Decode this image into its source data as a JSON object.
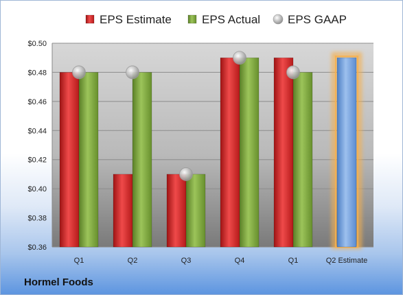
{
  "footer": {
    "company": "Hormel Foods"
  },
  "chart_data": {
    "type": "bar",
    "categories": [
      "Q1",
      "Q2",
      "Q3",
      "Q4",
      "Q1",
      "Q2 Estimate"
    ],
    "series": [
      {
        "name": "EPS Estimate",
        "kind": "bar",
        "color": "#d42a2a",
        "values": [
          0.48,
          0.41,
          0.41,
          0.49,
          0.49,
          null
        ]
      },
      {
        "name": "EPS Actual",
        "kind": "bar",
        "color": "#7ea53b",
        "values": [
          0.48,
          0.48,
          0.41,
          0.49,
          0.48,
          null
        ]
      },
      {
        "name": "EPS GAAP",
        "kind": "marker",
        "color": "#b8b8b8",
        "values": [
          0.48,
          0.48,
          0.41,
          0.49,
          0.48,
          null
        ]
      },
      {
        "name": "",
        "kind": "bar",
        "color": "#6f9ddb",
        "highlight": "#f5b04f",
        "values": [
          null,
          null,
          null,
          null,
          null,
          0.49
        ]
      }
    ],
    "y_ticks": [
      "$0.36",
      "$0.38",
      "$0.40",
      "$0.42",
      "$0.44",
      "$0.46",
      "$0.48",
      "$0.50"
    ],
    "ylim": [
      0.36,
      0.5
    ],
    "grid": true,
    "legend": "top",
    "title": "",
    "xlabel": "",
    "ylabel": ""
  }
}
